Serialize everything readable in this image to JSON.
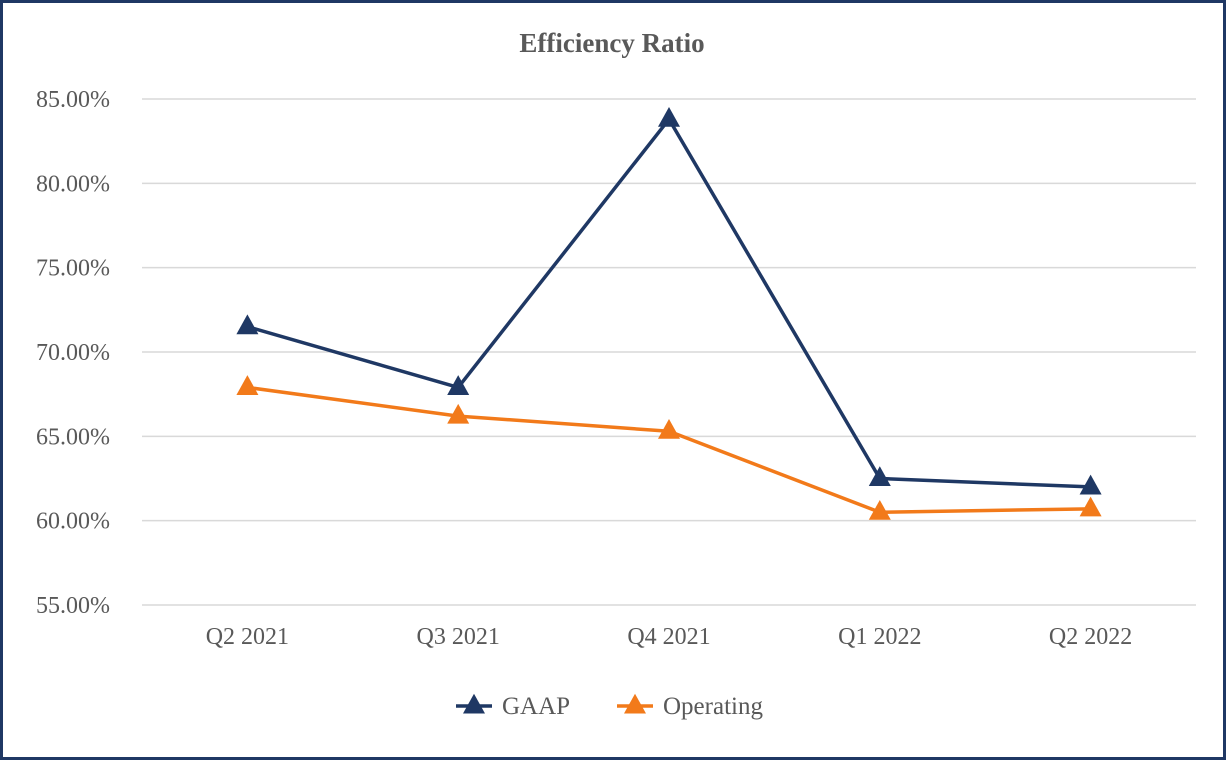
{
  "chart_data": {
    "type": "line",
    "title": "Efficiency Ratio",
    "categories": [
      "Q2 2021",
      "Q3 2021",
      "Q4 2021",
      "Q1 2022",
      "Q2 2022"
    ],
    "y_ticks": [
      "55.00%",
      "60.00%",
      "65.00%",
      "70.00%",
      "75.00%",
      "80.00%",
      "85.00%"
    ],
    "ylim": [
      55,
      85
    ],
    "y_step": 5,
    "xlabel": "",
    "ylabel": "",
    "grid": true,
    "legend_position": "bottom",
    "series": [
      {
        "name": "GAAP",
        "color": "#1f3864",
        "marker": "triangle",
        "values": [
          71.5,
          67.9,
          83.8,
          62.5,
          62.0
        ]
      },
      {
        "name": "Operating",
        "color": "#f27a1a",
        "marker": "triangle",
        "values": [
          67.9,
          66.2,
          65.3,
          60.5,
          60.7
        ]
      }
    ]
  }
}
